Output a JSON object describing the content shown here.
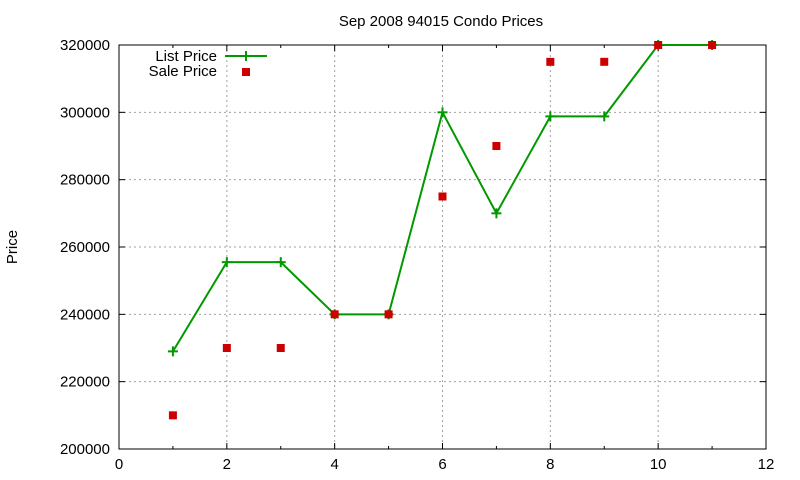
{
  "colors": {
    "list_price": "#009900",
    "sale_price": "#cc0000"
  },
  "chart_data": {
    "type": "line",
    "title": "Sep 2008 94015 Condo Prices",
    "xlabel": "",
    "ylabel": "Price",
    "xlim": [
      0,
      12
    ],
    "ylim": [
      200000,
      320000
    ],
    "xticks": [
      0,
      2,
      4,
      6,
      8,
      10,
      12
    ],
    "yticks": [
      200000,
      220000,
      240000,
      260000,
      280000,
      300000,
      320000
    ],
    "grid": true,
    "legend_position": "top-left",
    "series": [
      {
        "name": "List Price",
        "style": "line-with-plus-markers",
        "color": "#009900",
        "x": [
          1,
          2,
          3,
          4,
          5,
          6,
          7,
          8,
          9,
          10,
          11
        ],
        "y": [
          229000,
          255500,
          255500,
          240000,
          240000,
          300000,
          270000,
          298800,
          298800,
          320000,
          320000
        ]
      },
      {
        "name": "Sale Price",
        "style": "square-markers",
        "color": "#cc0000",
        "x": [
          1,
          2,
          3,
          4,
          5,
          6,
          7,
          8,
          9,
          10,
          11
        ],
        "y": [
          210000,
          230000,
          230000,
          240000,
          240000,
          275000,
          290000,
          315000,
          315000,
          320000,
          320000
        ]
      }
    ]
  }
}
